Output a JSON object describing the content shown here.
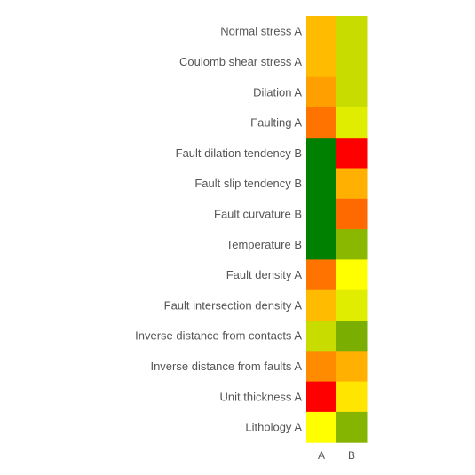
{
  "chart_data": {
    "type": "heatmap",
    "columns": [
      "A",
      "B"
    ],
    "rows": [
      "Normal stress A",
      "Coulomb shear stress A",
      "Dilation A",
      "Faulting A",
      "Fault dilation tendency B",
      "Fault slip tendency B",
      "Fault curvature B",
      "Temperature B",
      "Fault density A",
      "Fault intersection density A",
      "Inverse distance from contacts A",
      "Inverse distance from faults A",
      "Unit thickness A",
      "Lithology A"
    ],
    "cell_colors": [
      [
        "#ffbb00",
        "#c8dc00"
      ],
      [
        "#ffbb00",
        "#c8dc00"
      ],
      [
        "#ff9f00",
        "#c8dc00"
      ],
      [
        "#ff7300",
        "#e0ec00"
      ],
      [
        "#008000",
        "#ff0000"
      ],
      [
        "#008000",
        "#ffb000"
      ],
      [
        "#008000",
        "#ff6a00"
      ],
      [
        "#008000",
        "#8ab800"
      ],
      [
        "#ff7300",
        "#ffff00"
      ],
      [
        "#ffbb00",
        "#e0ec00"
      ],
      [
        "#c8dc00",
        "#7aae00"
      ],
      [
        "#ff8c00",
        "#ffb000"
      ],
      [
        "#ff0000",
        "#ffe500"
      ],
      [
        "#ffff00",
        "#85b500"
      ]
    ],
    "title": "",
    "xlabel": "",
    "ylabel": "",
    "legend": "none",
    "grid": false
  }
}
